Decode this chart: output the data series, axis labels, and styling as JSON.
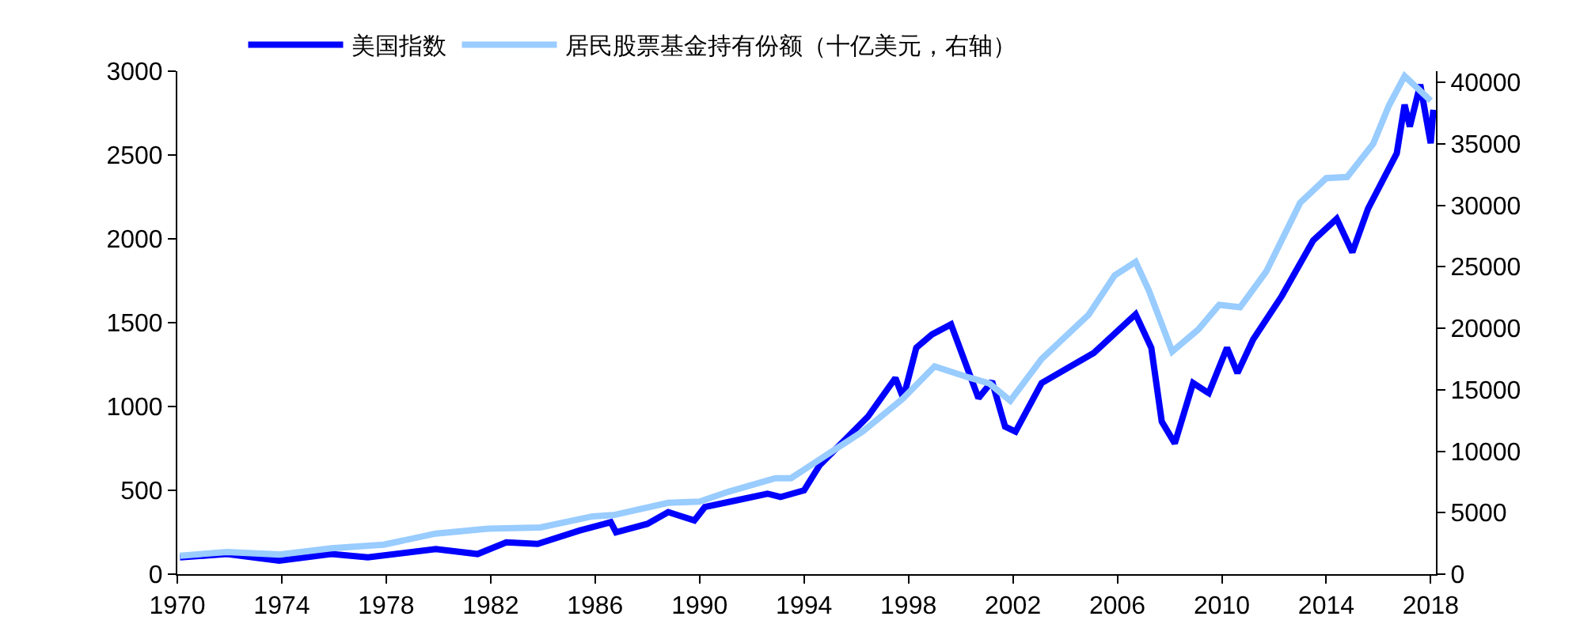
{
  "chart_data": {
    "type": "line",
    "legend": "top",
    "line_style": "solid",
    "marker": "none",
    "xlim": [
      1970,
      2018.2
    ],
    "xticks": [
      1970,
      1974,
      1978,
      1982,
      1986,
      1990,
      1994,
      1998,
      2002,
      2006,
      2010,
      2014,
      2018
    ],
    "ylim": [
      0,
      3000
    ],
    "yticks": [
      0,
      500,
      1000,
      1500,
      2000,
      2500,
      3000
    ],
    "y2lim": [
      0,
      40900
    ],
    "y2ticks": [
      0,
      5000,
      10000,
      15000,
      20000,
      25000,
      30000,
      35000,
      40000
    ],
    "series": [
      {
        "name": "美国指数",
        "color": "#0000ff",
        "x": [
          1970.1,
          1971.9,
          1973.9,
          1975.9,
          1977.3,
          1979.9,
          1981.5,
          1982.6,
          1983.8,
          1985.4,
          1986.6,
          1986.8,
          1988.0,
          1988.8,
          1989.2,
          1989.8,
          1990.2,
          1991.4,
          1992.6,
          1993.1,
          1994.0,
          1994.6,
          1996.45,
          1997.5,
          1997.8,
          1998.3,
          1998.9,
          1999.63,
          2000.68,
          2001.2,
          2001.7,
          2002.1,
          2003.1,
          2005.1,
          2006.7,
          2007.3,
          2007.7,
          2008.2,
          2008.9,
          2009.5,
          2010.2,
          2010.6,
          2011.2,
          2012.3,
          2013.5,
          2014.4,
          2015.0,
          2015.6,
          2016.7,
          2017.0,
          2017.2,
          2017.6,
          2018.0,
          2018.1
        ],
        "values": [
          100,
          120,
          80,
          120,
          100,
          150,
          120,
          190,
          180,
          260,
          310,
          250,
          300,
          370,
          350,
          320,
          400,
          440,
          480,
          460,
          500,
          650,
          940,
          1170,
          1050,
          1350,
          1430,
          1490,
          1050,
          1150,
          880,
          850,
          1140,
          1320,
          1550,
          1350,
          910,
          780,
          1140,
          1080,
          1350,
          1200,
          1400,
          1660,
          1990,
          2120,
          1920,
          2180,
          2510,
          2800,
          2670,
          2920,
          2570,
          2770
        ]
      },
      {
        "name": "居民股票基金持有份额（十亿美元，右轴）",
        "color": "#99ccff",
        "axis": "y2",
        "x": [
          1970.1,
          1971.9,
          1973.9,
          1975.9,
          1977.9,
          1979.9,
          1981.9,
          1983.9,
          1985.9,
          1986.7,
          1988.8,
          1990.0,
          1991.1,
          1992.9,
          1993.5,
          1994.8,
          1996.25,
          1997.8,
          1999.0,
          2000.3,
          2001.1,
          2001.9,
          2003.1,
          2004.9,
          2005.9,
          2006.7,
          2007.2,
          2008.1,
          2009.1,
          2009.9,
          2010.7,
          2011.7,
          2013.0,
          2014.0,
          2014.8,
          2015.8,
          2016.4,
          2017.0,
          2018.0
        ],
        "values": [
          1500,
          1800,
          1600,
          2100,
          2400,
          3300,
          3700,
          3800,
          4700,
          4800,
          5800,
          5900,
          6700,
          7800,
          7800,
          9600,
          11600,
          14300,
          16900,
          16000,
          15500,
          14100,
          17500,
          21100,
          24300,
          25400,
          23100,
          18100,
          19900,
          21900,
          21700,
          24600,
          30200,
          32200,
          32300,
          35000,
          38100,
          40500,
          38500
        ]
      }
    ]
  }
}
